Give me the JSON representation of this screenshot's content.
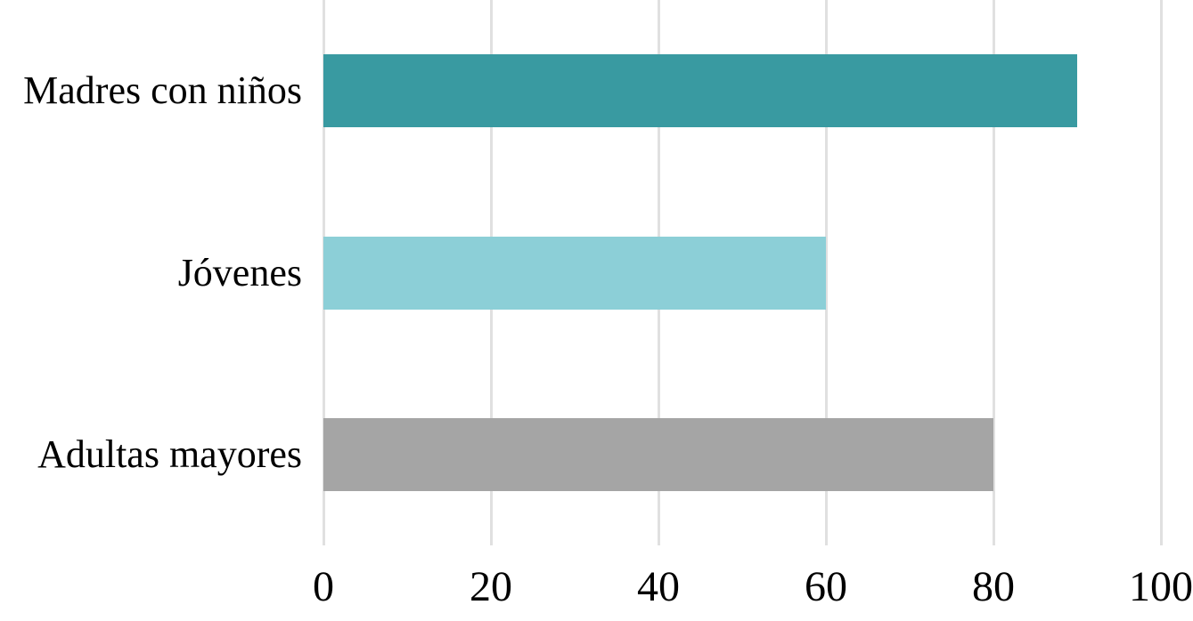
{
  "chart_data": {
    "type": "bar",
    "orientation": "horizontal",
    "title": "",
    "xlabel": "",
    "ylabel": "",
    "categories": [
      "Madres con niños",
      "Jóvenes",
      "Adultas mayores"
    ],
    "values": [
      90,
      60,
      80
    ],
    "bar_colors": [
      "#399aa1",
      "#8ccfd7",
      "#a5a5a5"
    ],
    "xlim": [
      0,
      100
    ],
    "xticks": [
      0,
      20,
      40,
      60,
      80,
      100
    ],
    "grid": "vertical-gridlines-only",
    "legend": "none",
    "gridline_color": "#e0e0e0",
    "background_color": "#ffffff",
    "text_color": "#000000"
  }
}
